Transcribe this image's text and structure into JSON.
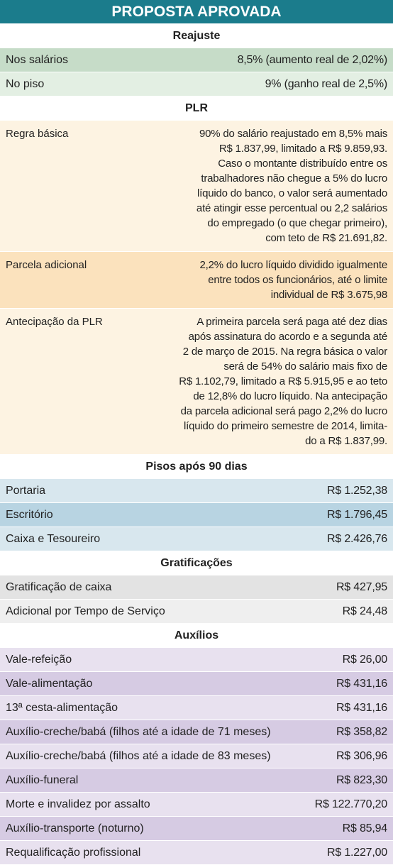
{
  "header": {
    "title": "PROPOSTA APROVADA"
  },
  "sections": [
    {
      "title": "Reajuste",
      "rows": [
        {
          "label": "Nos salários",
          "value": [
            "8,5% (aumento real de 2,02%)"
          ]
        },
        {
          "label": "No piso",
          "value": [
            "9% (ganho real de 2,5%)"
          ]
        }
      ]
    },
    {
      "title": "PLR",
      "rows": [
        {
          "label": "Regra básica",
          "value": [
            "90% do salário reajustado em 8,5% mais",
            "R$ 1.837,99, limitado a R$ 9.859,93.",
            "Caso o montante distribuído entre os",
            "trabalhadores não chegue a 5% do lucro",
            "líquido do banco, o valor será aumentado",
            "até atingir esse percentual ou 2,2 salários",
            "do empregado (o que chegar primeiro),",
            "com teto de R$ 21.691,82."
          ]
        },
        {
          "label": "Parcela adicional",
          "value": [
            "2,2% do lucro líquido dividido igualmente",
            "entre todos os funcionários, até o limite",
            "individual de R$ 3.675,98"
          ]
        },
        {
          "label": "Antecipação da PLR",
          "value": [
            "A primeira parcela será paga até dez dias",
            "após assinatura do acordo e a segunda até",
            "2 de março de 2015. Na regra básica o valor",
            "será de 54% do salário mais fixo de",
            "R$ 1.102,79, limitado a R$ 5.915,95 e ao teto",
            "de 12,8% do lucro líquido. Na antecipação",
            "da parcela adicional será pago 2,2% do lucro",
            "líquido do  primeiro semestre de 2014, limita-",
            "do a R$ 1.837,99."
          ]
        }
      ]
    },
    {
      "title": "Pisos após 90 dias",
      "rows": [
        {
          "label": "Portaria",
          "value": [
            "R$ 1.252,38"
          ]
        },
        {
          "label": "Escritório",
          "value": [
            "R$ 1.796,45"
          ]
        },
        {
          "label": "Caixa e Tesoureiro",
          "value": [
            "R$ 2.426,76"
          ]
        }
      ]
    },
    {
      "title": "Gratificações",
      "rows": [
        {
          "label": "Gratificação de caixa",
          "value": [
            "R$ 427,95"
          ]
        },
        {
          "label": "Adicional por Tempo de Serviço",
          "value": [
            "R$ 24,48"
          ]
        }
      ]
    },
    {
      "title": "Auxílios",
      "rows": [
        {
          "label": "Vale-refeição",
          "value": [
            "R$ 26,00"
          ]
        },
        {
          "label": "Vale-alimentação",
          "value": [
            "R$ 431,16"
          ]
        },
        {
          "label": "13ª cesta-alimentação",
          "value": [
            "R$ 431,16"
          ]
        },
        {
          "label": "Auxílio-creche/babá (filhos até a idade de 71 meses)",
          "value": [
            "R$ 358,82"
          ]
        },
        {
          "label": "Auxílio-creche/babá (filhos até a idade de 83 meses)",
          "value": [
            "R$ 306,96"
          ]
        },
        {
          "label": "Auxílio-funeral",
          "value": [
            "R$ 823,30"
          ]
        },
        {
          "label": "Morte e invalidez por assalto",
          "value": [
            "R$ 122.770,20"
          ]
        },
        {
          "label": "Auxílio-transporte (noturno)",
          "value": [
            "R$ 85,94"
          ]
        },
        {
          "label": "Requalificação profissional",
          "value": [
            "R$ 1.227,00"
          ]
        }
      ]
    }
  ]
}
